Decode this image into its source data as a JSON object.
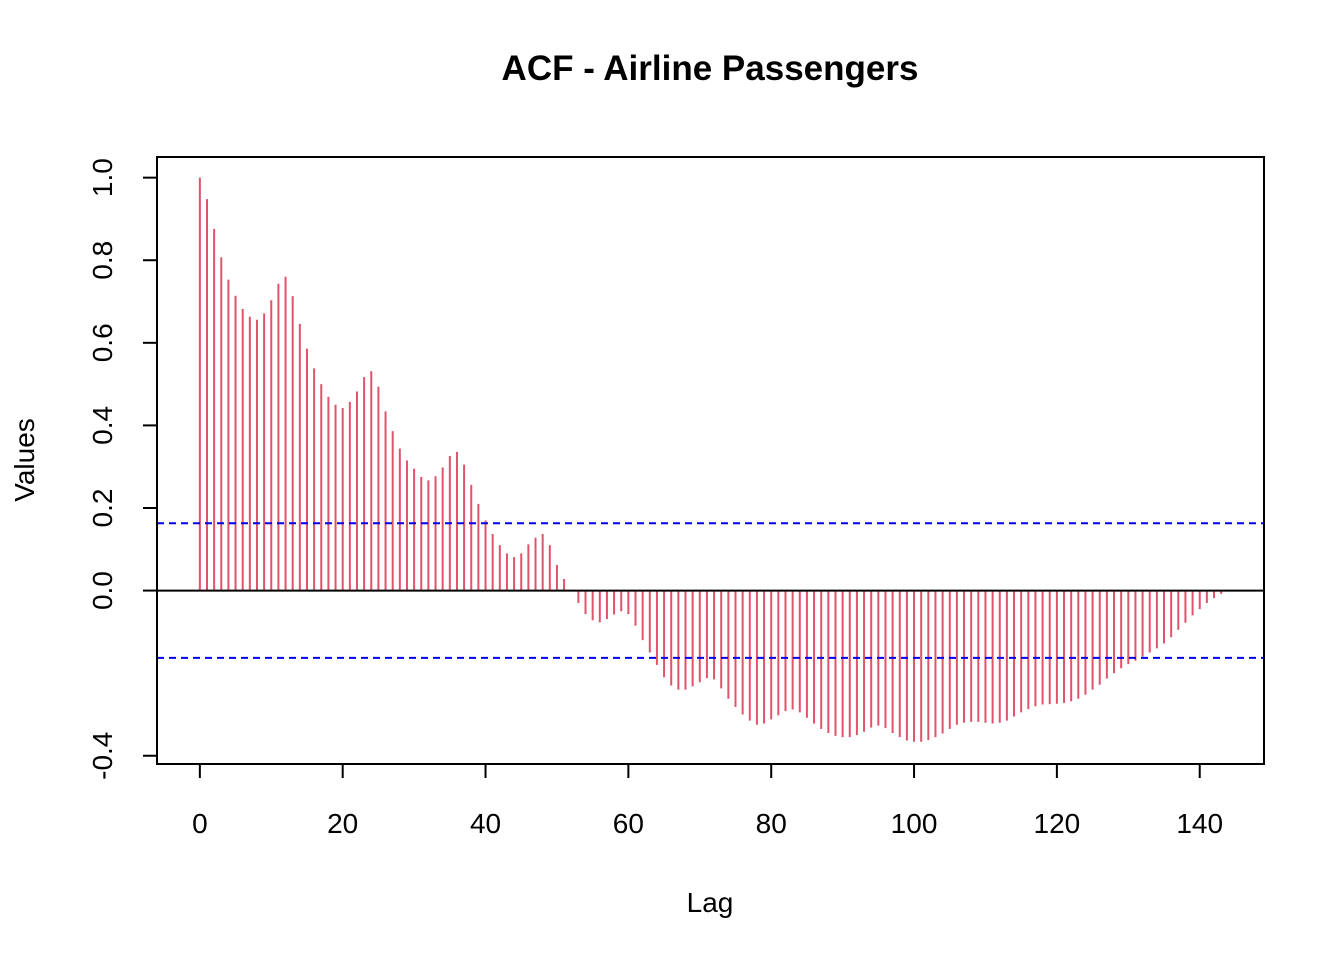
{
  "chart_data": {
    "type": "bar",
    "title": "ACF - Airline Passengers",
    "xlabel": "Lag",
    "ylabel": "Values",
    "xlim": [
      -6,
      149
    ],
    "ylim": [
      -0.42,
      1.05
    ],
    "x_ticks": [
      0,
      20,
      40,
      60,
      80,
      100,
      120,
      140
    ],
    "x_tick_labels": [
      "0",
      "20",
      "40",
      "60",
      "80",
      "100",
      "120",
      "140"
    ],
    "y_ticks": [
      -0.4,
      0.0,
      0.2,
      0.4,
      0.6,
      0.8,
      1.0
    ],
    "y_tick_labels": [
      "-0.4",
      "0.0",
      "0.2",
      "0.4",
      "0.6",
      "0.8",
      "1.0"
    ],
    "confidence_bounds": [
      0.163,
      -0.163
    ],
    "grid": false,
    "legend": "none",
    "colors": {
      "bars": "#DF536B",
      "bounds": "#0000EE",
      "zero_line": "#000000",
      "frame": "#000000"
    },
    "series": [
      {
        "values": [
          1.0,
          0.948,
          0.876,
          0.807,
          0.753,
          0.714,
          0.682,
          0.663,
          0.656,
          0.671,
          0.703,
          0.743,
          0.76,
          0.713,
          0.646,
          0.586,
          0.538,
          0.5,
          0.469,
          0.45,
          0.442,
          0.457,
          0.482,
          0.517,
          0.531,
          0.494,
          0.434,
          0.386,
          0.344,
          0.315,
          0.295,
          0.275,
          0.267,
          0.277,
          0.298,
          0.326,
          0.336,
          0.305,
          0.256,
          0.21,
          0.17,
          0.137,
          0.11,
          0.09,
          0.081,
          0.09,
          0.112,
          0.128,
          0.137,
          0.11,
          0.062,
          0.028,
          0.0,
          -0.03,
          -0.057,
          -0.072,
          -0.077,
          -0.069,
          -0.058,
          -0.05,
          -0.057,
          -0.085,
          -0.12,
          -0.15,
          -0.18,
          -0.21,
          -0.23,
          -0.24,
          -0.24,
          -0.232,
          -0.222,
          -0.212,
          -0.215,
          -0.237,
          -0.262,
          -0.282,
          -0.3,
          -0.315,
          -0.325,
          -0.322,
          -0.312,
          -0.302,
          -0.292,
          -0.288,
          -0.295,
          -0.308,
          -0.322,
          -0.335,
          -0.345,
          -0.352,
          -0.355,
          -0.355,
          -0.35,
          -0.342,
          -0.332,
          -0.327,
          -0.333,
          -0.345,
          -0.355,
          -0.363,
          -0.366,
          -0.366,
          -0.362,
          -0.355,
          -0.346,
          -0.335,
          -0.325,
          -0.32,
          -0.318,
          -0.318,
          -0.32,
          -0.322,
          -0.32,
          -0.315,
          -0.305,
          -0.295,
          -0.287,
          -0.28,
          -0.276,
          -0.275,
          -0.274,
          -0.272,
          -0.268,
          -0.262,
          -0.252,
          -0.24,
          -0.228,
          -0.213,
          -0.2,
          -0.188,
          -0.178,
          -0.17,
          -0.16,
          -0.15,
          -0.14,
          -0.128,
          -0.113,
          -0.095,
          -0.078,
          -0.06,
          -0.045,
          -0.03,
          -0.018,
          -0.008
        ]
      }
    ]
  }
}
